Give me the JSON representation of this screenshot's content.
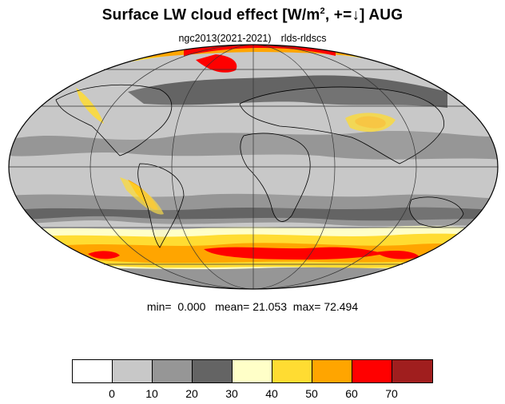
{
  "title": {
    "main": "Surface LW cloud effect [W/m",
    "sup": "2",
    "rest": ", +=↓]  AUG"
  },
  "subtitle": {
    "run": "ngc2013(2021-2021)",
    "variable": "rlds-rldscs"
  },
  "stats": {
    "min_label": "min=",
    "min": "0.000",
    "mean_label": "mean=",
    "mean": "21.053",
    "max_label": "max=",
    "max": "72.494"
  },
  "colorbar": {
    "colors": [
      "#ffffff",
      "#c8c8c8",
      "#969696",
      "#646464",
      "#ffffc8",
      "#ffdc32",
      "#ffa500",
      "#ff0000",
      "#a01e1e"
    ],
    "tick_labels": [
      "0",
      "10",
      "20",
      "30",
      "40",
      "50",
      "60",
      "70"
    ]
  },
  "map": {
    "projection": "Mollweide",
    "background": "#c8c8c8"
  }
}
